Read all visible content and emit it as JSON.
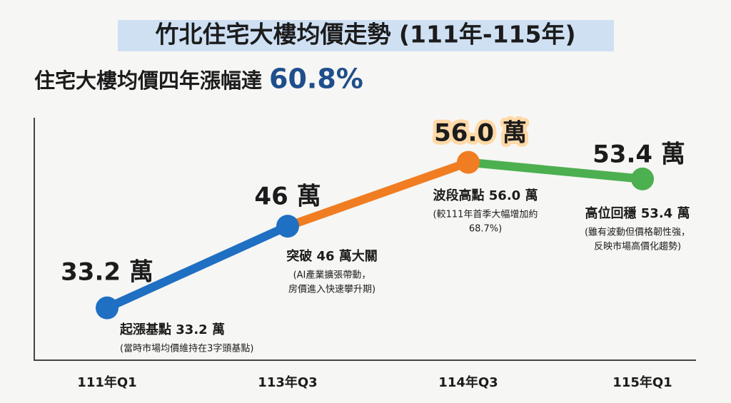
{
  "chart_data": {
    "type": "line",
    "title": "竹北住宅大樓均價走勢 (111年-115年)",
    "subtitle": "住宅大樓均價四年漲幅達",
    "subtitle_highlight": "60.8%",
    "categories": [
      "111年Q1",
      "113年Q3",
      "114年Q3",
      "115年Q1"
    ],
    "values": [
      33.2,
      46,
      56.0,
      53.4
    ],
    "value_labels": [
      "33.2 萬",
      "46 萬",
      "56.0 萬",
      "53.4 萬"
    ],
    "colors": [
      "#1f6fc2",
      "#1f6fc2",
      "#f07d22",
      "#4caf50"
    ],
    "ylim": [
      25,
      63
    ],
    "annotations": [
      {
        "title": "起漲基點 33.2 萬",
        "note": [
          "(當時市場均價維持在3字頭基點)"
        ]
      },
      {
        "title": "突破 46 萬大關",
        "note": [
          "(AI產業擴張帶動，",
          "房價進入快速攀升期)"
        ]
      },
      {
        "title": "波段高點 56.0 萬",
        "note": [
          "(較111年首季大幅增加約",
          "68.7%)"
        ]
      },
      {
        "title": "高位回穩 53.4 萬",
        "note": [
          "(雖有波動但價格韌性強，",
          "反映市場高價化趨勢)"
        ]
      }
    ]
  }
}
